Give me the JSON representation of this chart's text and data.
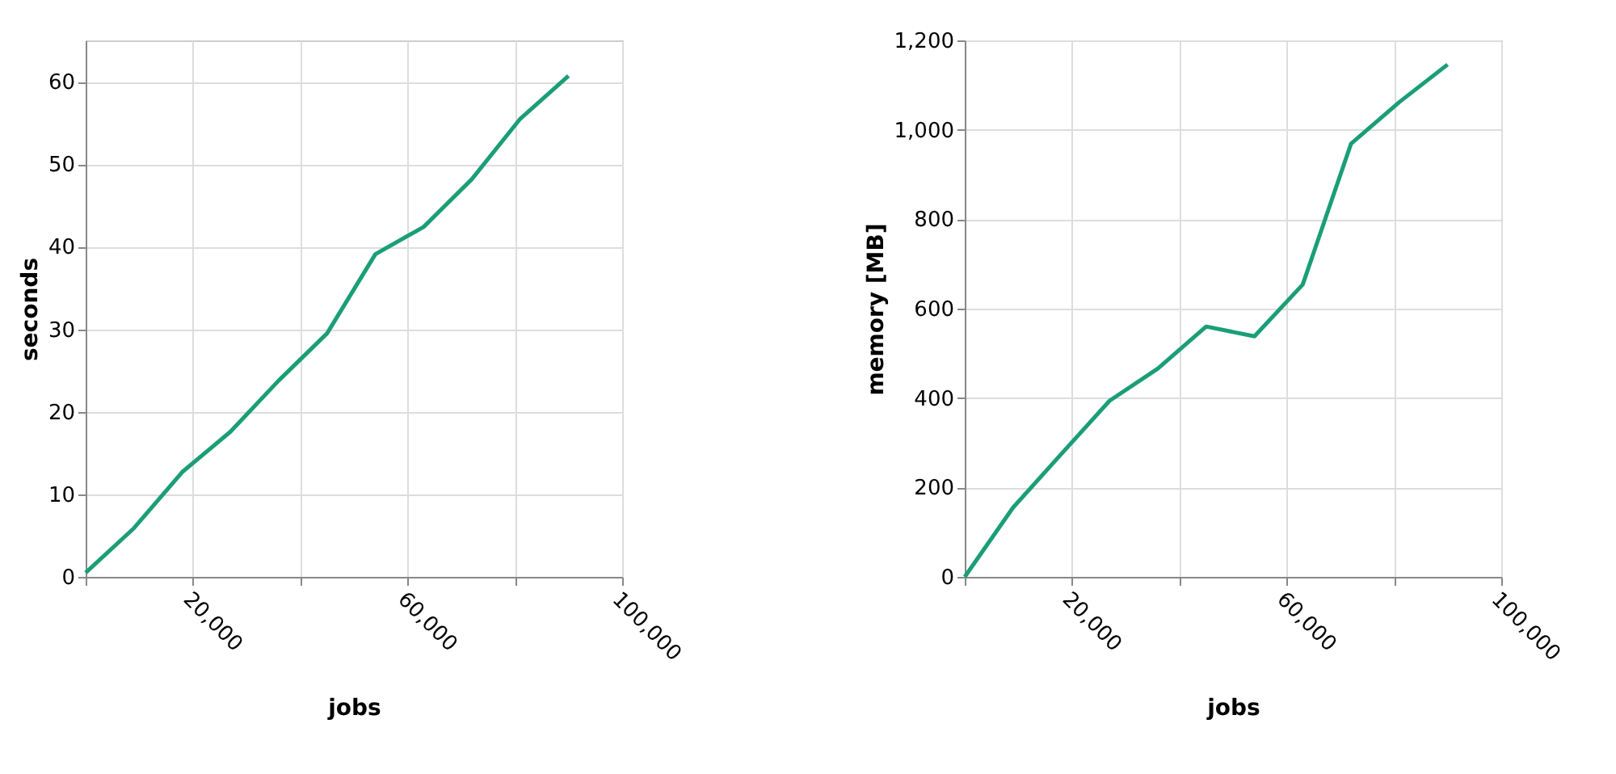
{
  "chart_data": [
    {
      "type": "line",
      "xlabel": "jobs",
      "ylabel": "seconds",
      "x": [
        0,
        9000,
        18000,
        27000,
        36000,
        45000,
        54000,
        63000,
        72000,
        81000,
        90000
      ],
      "series": [
        {
          "color": "#1b9e77",
          "values": [
            0.5,
            5.9,
            12.7,
            17.6,
            23.8,
            29.5,
            39.1,
            42.4,
            48.2,
            55.5,
            60.7
          ]
        }
      ],
      "xlim": [
        0,
        100000
      ],
      "xticks": [
        {
          "value": 0,
          "label": null
        },
        {
          "value": 20000,
          "label": "20,000"
        },
        {
          "value": 40000,
          "label": null
        },
        {
          "value": 60000,
          "label": "60,000"
        },
        {
          "value": 80000,
          "label": null
        },
        {
          "value": 100000,
          "label": "100,000"
        }
      ],
      "ylim": [
        0,
        65
      ],
      "yticks": [
        0,
        10,
        20,
        30,
        40,
        50,
        60
      ],
      "grid": true
    },
    {
      "type": "line",
      "xlabel": "jobs",
      "ylabel": "memory [MB]",
      "x": [
        0,
        9000,
        18000,
        27000,
        36000,
        45000,
        54000,
        63000,
        72000,
        81000,
        90000
      ],
      "series": [
        {
          "color": "#1b9e77",
          "values": [
            0,
            155,
            275,
            394,
            466,
            560,
            538,
            654,
            969,
            1062,
            1146
          ]
        }
      ],
      "xlim": [
        0,
        100000
      ],
      "xticks": [
        {
          "value": 0,
          "label": null
        },
        {
          "value": 20000,
          "label": "20,000"
        },
        {
          "value": 40000,
          "label": null
        },
        {
          "value": 60000,
          "label": "60,000"
        },
        {
          "value": 80000,
          "label": null
        },
        {
          "value": 100000,
          "label": "100,000"
        }
      ],
      "ylim": [
        0,
        1200
      ],
      "yticks": [
        {
          "value": 0,
          "label": "0"
        },
        {
          "value": 200,
          "label": "200"
        },
        {
          "value": 400,
          "label": "400"
        },
        {
          "value": 600,
          "label": "600"
        },
        {
          "value": 800,
          "label": "800"
        },
        {
          "value": 1000,
          "label": "1,000"
        },
        {
          "value": 1200,
          "label": "1,200"
        }
      ],
      "grid": true
    }
  ]
}
